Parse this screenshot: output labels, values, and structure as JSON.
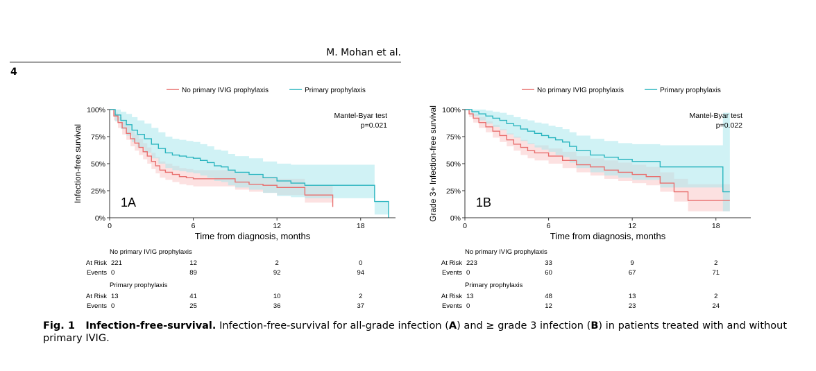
{
  "header": {
    "running_head": "M. Mohan et al.",
    "page_number": "4"
  },
  "caption": {
    "fig_label": "Fig. 1",
    "title": "Infection-free-survival.",
    "text_1": " Infection-free-survival for all-grade infection (",
    "label_a": "A",
    "text_2": ") and ≥ grade 3 infection (",
    "label_b": "B",
    "text_3": ") in patients treated with and without primary IVIG."
  },
  "colors": {
    "no_ivig": "#e8706f",
    "no_ivig_band": "#f9c9c8",
    "ivig": "#2bb5bf",
    "ivig_band": "#a9e8ec"
  },
  "chart_data": [
    {
      "type": "line",
      "panel_label": "1A",
      "xlabel": "Time from diagnosis, months",
      "ylabel": "Infection-free survival",
      "xlim": [
        0,
        20.5
      ],
      "ylim": [
        0,
        1
      ],
      "x_ticks": [
        0,
        6,
        12,
        18
      ],
      "y_ticks": [
        0,
        0.25,
        0.5,
        0.75,
        1
      ],
      "y_tick_labels": [
        "0%",
        "25%",
        "50%",
        "75%",
        "100%"
      ],
      "legend_position": "top",
      "test_label": "Mantel-Byar test",
      "p_value": "p=0.021",
      "series": [
        {
          "name": "No primary IVIG prophylaxis",
          "color": "#e8706f",
          "band_color": "#f9c9c8",
          "x": [
            0,
            0.3,
            0.6,
            0.9,
            1.2,
            1.5,
            1.8,
            2.1,
            2.4,
            2.7,
            3.0,
            3.3,
            3.6,
            4.0,
            4.5,
            5.0,
            5.5,
            6.0,
            7.0,
            8.0,
            9.0,
            10.0,
            11.0,
            12.0,
            13.0,
            14.0,
            15.0,
            16.0
          ],
          "y": [
            1.0,
            0.94,
            0.88,
            0.83,
            0.78,
            0.73,
            0.69,
            0.65,
            0.61,
            0.57,
            0.52,
            0.48,
            0.44,
            0.42,
            0.4,
            0.38,
            0.37,
            0.36,
            0.36,
            0.36,
            0.33,
            0.31,
            0.3,
            0.28,
            0.28,
            0.21,
            0.21,
            0.1
          ],
          "lower": [
            1.0,
            0.9,
            0.83,
            0.77,
            0.72,
            0.66,
            0.62,
            0.58,
            0.54,
            0.5,
            0.45,
            0.41,
            0.37,
            0.35,
            0.33,
            0.31,
            0.3,
            0.29,
            0.29,
            0.29,
            0.26,
            0.24,
            0.23,
            0.21,
            0.21,
            0.14,
            0.14,
            0.1
          ],
          "upper": [
            1.0,
            0.97,
            0.93,
            0.89,
            0.85,
            0.8,
            0.77,
            0.73,
            0.69,
            0.65,
            0.6,
            0.56,
            0.52,
            0.5,
            0.48,
            0.46,
            0.45,
            0.44,
            0.44,
            0.44,
            0.41,
            0.39,
            0.38,
            0.36,
            0.36,
            0.3,
            0.3,
            0.1
          ]
        },
        {
          "name": "Primary prophylaxis",
          "color": "#2bb5bf",
          "band_color": "#a9e8ec",
          "x": [
            0,
            0.4,
            0.8,
            1.2,
            1.6,
            2.0,
            2.5,
            3.0,
            3.5,
            4.0,
            4.5,
            5.0,
            5.5,
            6.0,
            6.5,
            7.0,
            7.5,
            8.0,
            8.5,
            9.0,
            10.0,
            11.0,
            12.0,
            13.0,
            14.0,
            15.0,
            16.0,
            17.0,
            18.0,
            19.0,
            20.0
          ],
          "y": [
            1.0,
            0.95,
            0.9,
            0.86,
            0.81,
            0.77,
            0.73,
            0.68,
            0.64,
            0.6,
            0.58,
            0.57,
            0.56,
            0.55,
            0.53,
            0.51,
            0.48,
            0.47,
            0.44,
            0.42,
            0.4,
            0.37,
            0.34,
            0.32,
            0.3,
            0.3,
            0.3,
            0.3,
            0.3,
            0.15,
            0.0
          ],
          "lower": [
            1.0,
            0.89,
            0.82,
            0.76,
            0.7,
            0.65,
            0.6,
            0.55,
            0.5,
            0.46,
            0.44,
            0.43,
            0.42,
            0.41,
            0.39,
            0.37,
            0.34,
            0.33,
            0.3,
            0.28,
            0.26,
            0.23,
            0.2,
            0.19,
            0.18,
            0.18,
            0.18,
            0.18,
            0.18,
            0.03,
            0.0
          ],
          "upper": [
            1.0,
            1.0,
            0.98,
            0.96,
            0.93,
            0.9,
            0.87,
            0.83,
            0.79,
            0.75,
            0.73,
            0.72,
            0.71,
            0.7,
            0.68,
            0.66,
            0.63,
            0.62,
            0.59,
            0.57,
            0.55,
            0.52,
            0.5,
            0.49,
            0.49,
            0.49,
            0.49,
            0.49,
            0.49,
            0.15,
            0.0
          ]
        }
      ],
      "risk_table": {
        "time_points": [
          0,
          6,
          12,
          18
        ],
        "groups": [
          {
            "name": "No primary IVIG prophylaxis",
            "rows": [
              {
                "label": "At Risk",
                "values": [
                  "221",
                  "12",
                  "2",
                  "0"
                ]
              },
              {
                "label": "Events",
                "values": [
                  "0",
                  "89",
                  "92",
                  "94"
                ]
              }
            ]
          },
          {
            "name": "Primary prophylaxis",
            "rows": [
              {
                "label": "At Risk",
                "values": [
                  "13",
                  "41",
                  "10",
                  "2"
                ]
              },
              {
                "label": "Events",
                "values": [
                  "0",
                  "25",
                  "36",
                  "37"
                ]
              }
            ]
          }
        ]
      }
    },
    {
      "type": "line",
      "panel_label": "1B",
      "xlabel": "Time from diagnosis, months",
      "ylabel": "Grade 3+ Infection-free survival",
      "xlim": [
        0,
        20.5
      ],
      "ylim": [
        0,
        1
      ],
      "x_ticks": [
        0,
        6,
        12,
        18
      ],
      "y_ticks": [
        0,
        0.25,
        0.5,
        0.75,
        1
      ],
      "y_tick_labels": [
        "0%",
        "25%",
        "50%",
        "75%",
        "100%"
      ],
      "legend_position": "top",
      "test_label": "Mantel-Byar test",
      "p_value": "p=0.022",
      "series": [
        {
          "name": "No primary IVIG prophylaxis",
          "color": "#e8706f",
          "band_color": "#f9c9c8",
          "x": [
            0,
            0.3,
            0.6,
            1.0,
            1.5,
            2.0,
            2.5,
            3.0,
            3.5,
            4.0,
            4.5,
            5.0,
            6.0,
            7.0,
            8.0,
            9.0,
            10.0,
            11.0,
            12.0,
            13.0,
            14.0,
            15.0,
            16.0,
            17.0,
            18.0,
            19.0
          ],
          "y": [
            1.0,
            0.96,
            0.92,
            0.88,
            0.84,
            0.8,
            0.76,
            0.72,
            0.68,
            0.65,
            0.62,
            0.6,
            0.57,
            0.53,
            0.49,
            0.47,
            0.44,
            0.42,
            0.4,
            0.38,
            0.32,
            0.24,
            0.16,
            0.16,
            0.16,
            0.16
          ],
          "lower": [
            1.0,
            0.93,
            0.88,
            0.83,
            0.79,
            0.74,
            0.7,
            0.66,
            0.62,
            0.58,
            0.55,
            0.53,
            0.5,
            0.46,
            0.42,
            0.39,
            0.36,
            0.34,
            0.32,
            0.3,
            0.24,
            0.15,
            0.06,
            0.06,
            0.06,
            0.06
          ],
          "upper": [
            1.0,
            0.99,
            0.96,
            0.93,
            0.89,
            0.86,
            0.82,
            0.78,
            0.75,
            0.72,
            0.69,
            0.67,
            0.64,
            0.61,
            0.57,
            0.55,
            0.53,
            0.51,
            0.49,
            0.47,
            0.42,
            0.36,
            0.31,
            0.31,
            0.31,
            0.31
          ]
        },
        {
          "name": "Primary prophylaxis",
          "color": "#2bb5bf",
          "band_color": "#a9e8ec",
          "x": [
            0,
            0.5,
            1.0,
            1.5,
            2.0,
            2.5,
            3.0,
            3.5,
            4.0,
            4.5,
            5.0,
            5.5,
            6.0,
            6.5,
            7.0,
            7.5,
            8.0,
            9.0,
            10.0,
            11.0,
            12.0,
            13.0,
            14.0,
            15.0,
            16.0,
            17.0,
            18.0,
            18.5,
            19.0
          ],
          "y": [
            1.0,
            0.98,
            0.96,
            0.94,
            0.92,
            0.9,
            0.87,
            0.85,
            0.82,
            0.8,
            0.78,
            0.76,
            0.74,
            0.72,
            0.7,
            0.66,
            0.62,
            0.58,
            0.56,
            0.54,
            0.52,
            0.52,
            0.47,
            0.47,
            0.47,
            0.47,
            0.47,
            0.24,
            0.24
          ],
          "lower": [
            1.0,
            0.94,
            0.9,
            0.87,
            0.84,
            0.81,
            0.77,
            0.74,
            0.71,
            0.68,
            0.65,
            0.63,
            0.61,
            0.58,
            0.56,
            0.51,
            0.46,
            0.42,
            0.39,
            0.37,
            0.35,
            0.35,
            0.28,
            0.28,
            0.28,
            0.28,
            0.28,
            0.06,
            0.06
          ],
          "upper": [
            1.0,
            1.0,
            1.0,
            0.99,
            0.98,
            0.97,
            0.95,
            0.93,
            0.91,
            0.9,
            0.88,
            0.87,
            0.85,
            0.84,
            0.82,
            0.79,
            0.76,
            0.73,
            0.71,
            0.69,
            0.68,
            0.68,
            0.67,
            0.67,
            0.67,
            0.67,
            0.67,
            0.97,
            0.97
          ]
        }
      ],
      "risk_table": {
        "time_points": [
          0,
          6,
          12,
          18
        ],
        "groups": [
          {
            "name": "No primary IVIG prophylaxis",
            "rows": [
              {
                "label": "At Risk",
                "values": [
                  "223",
                  "33",
                  "9",
                  "2"
                ]
              },
              {
                "label": "Events",
                "values": [
                  "0",
                  "60",
                  "67",
                  "71"
                ]
              }
            ]
          },
          {
            "name": "Primary prophylaxis",
            "rows": [
              {
                "label": "At Risk",
                "values": [
                  "13",
                  "48",
                  "13",
                  "2"
                ]
              },
              {
                "label": "Events",
                "values": [
                  "0",
                  "12",
                  "23",
                  "24"
                ]
              }
            ]
          }
        ]
      }
    }
  ]
}
